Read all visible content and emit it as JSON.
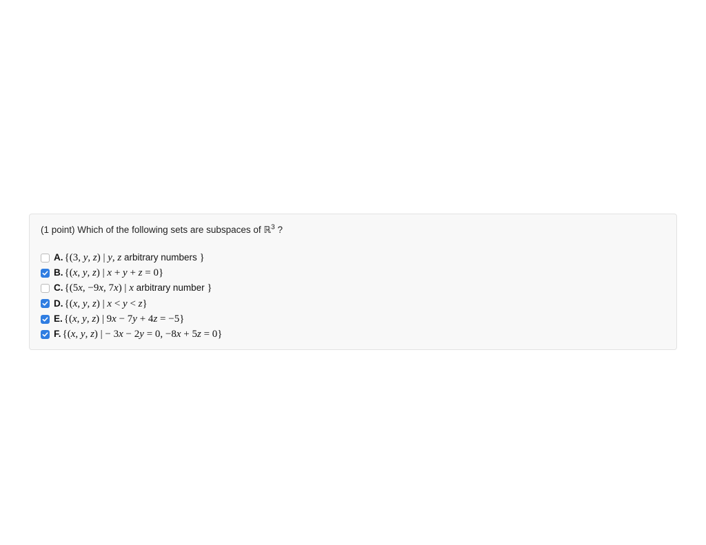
{
  "question": {
    "points_prefix": "(1 point) ",
    "text_before": "Which of the following sets are subspaces of ",
    "space_symbol": "ℝ",
    "exponent": "3",
    "text_after": " ?"
  },
  "checkbox": {
    "checked_bg": "#2f7de1",
    "unchecked_border": "#b9b9b9",
    "check_stroke": "#ffffff"
  },
  "options": [
    {
      "letter": "A.",
      "checked": false,
      "math_html": "{(3, <span class='it'>y</span>, <span class='it'>z</span>) | <span class='it'>y</span>, <span class='it'>z</span> <span class='plain'>arbitrary numbers</span> }"
    },
    {
      "letter": "B.",
      "checked": true,
      "math_html": "{(<span class='it'>x</span>, <span class='it'>y</span>, <span class='it'>z</span>) | <span class='it'>x</span> + <span class='it'>y</span> + <span class='it'>z</span> = 0}"
    },
    {
      "letter": "C.",
      "checked": false,
      "math_html": "{(5<span class='it'>x</span>, −9<span class='it'>x</span>, 7<span class='it'>x</span>) | <span class='it'>x</span> <span class='plain'>arbitrary number</span> }"
    },
    {
      "letter": "D.",
      "checked": true,
      "math_html": "{(<span class='it'>x</span>, <span class='it'>y</span>, <span class='it'>z</span>) | <span class='it'>x</span> &lt; <span class='it'>y</span> &lt; <span class='it'>z</span>}"
    },
    {
      "letter": "E.",
      "checked": true,
      "math_html": "{(<span class='it'>x</span>, <span class='it'>y</span>, <span class='it'>z</span>) | 9<span class='it'>x</span> − 7<span class='it'>y</span> + 4<span class='it'>z</span> = −5}"
    },
    {
      "letter": "F.",
      "checked": true,
      "math_html": "{(<span class='it'>x</span>, <span class='it'>y</span>, <span class='it'>z</span>) | − 3<span class='it'>x</span> − 2<span class='it'>y</span> = 0, −8<span class='it'>x</span> + 5<span class='it'>z</span> = 0}"
    }
  ]
}
